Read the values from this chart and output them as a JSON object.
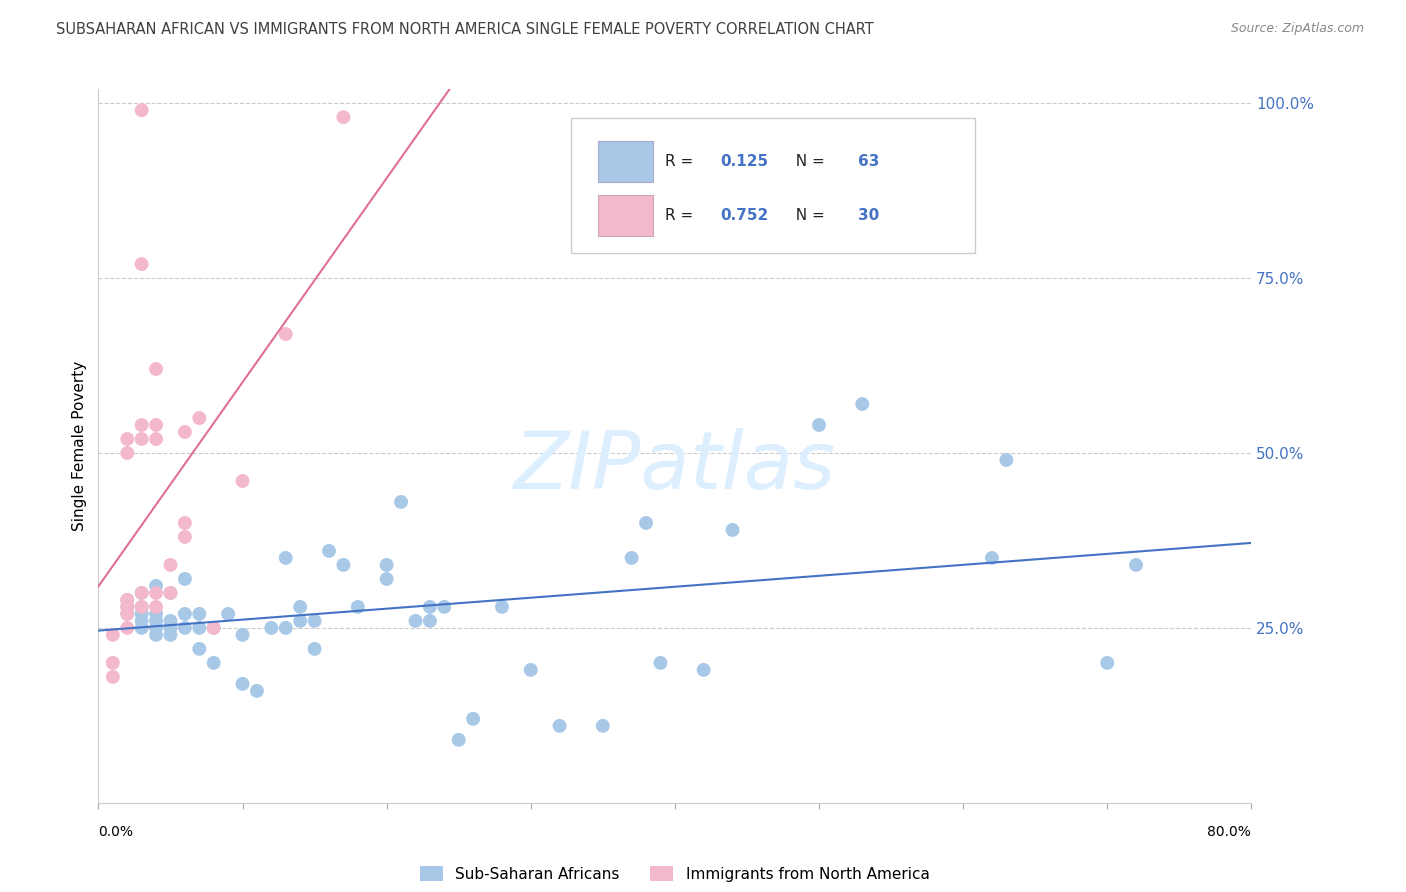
{
  "title": "SUBSAHARAN AFRICAN VS IMMIGRANTS FROM NORTH AMERICA SINGLE FEMALE POVERTY CORRELATION CHART",
  "source": "Source: ZipAtlas.com",
  "ylabel": "Single Female Poverty",
  "blue_label": "Sub-Saharan Africans",
  "pink_label": "Immigrants from North America",
  "blue_R": "0.125",
  "blue_N": "63",
  "pink_R": "0.752",
  "pink_N": "30",
  "blue_color": "#a8c8e8",
  "pink_color": "#f4b8cc",
  "blue_line_color": "#4472c4",
  "pink_line_color": "#e07090",
  "title_color": "#404040",
  "value_color": "#4472c4",
  "label_color": "#222222",
  "source_color": "#888888",
  "ytick_color": "#4472c4",
  "xlim": [
    0,
    0.8
  ],
  "ylim": [
    0,
    1.02
  ],
  "yticks": [
    0.25,
    0.5,
    0.75,
    1.0
  ],
  "ytick_labels": [
    "25.0%",
    "50.0%",
    "75.0%",
    "100.0%"
  ],
  "watermark": "ZIPatlas",
  "watermark_color": "#ddeeff",
  "blue_x": [
    0.02,
    0.02,
    0.02,
    0.03,
    0.03,
    0.03,
    0.03,
    0.03,
    0.04,
    0.04,
    0.04,
    0.04,
    0.04,
    0.05,
    0.05,
    0.05,
    0.05,
    0.06,
    0.06,
    0.06,
    0.07,
    0.07,
    0.07,
    0.08,
    0.08,
    0.09,
    0.1,
    0.1,
    0.11,
    0.12,
    0.13,
    0.13,
    0.14,
    0.14,
    0.15,
    0.15,
    0.16,
    0.17,
    0.18,
    0.2,
    0.2,
    0.21,
    0.22,
    0.23,
    0.23,
    0.24,
    0.25,
    0.26,
    0.28,
    0.3,
    0.32,
    0.35,
    0.37,
    0.38,
    0.39,
    0.42,
    0.44,
    0.5,
    0.53,
    0.62,
    0.63,
    0.7,
    0.72
  ],
  "blue_y": [
    0.27,
    0.28,
    0.29,
    0.25,
    0.26,
    0.27,
    0.28,
    0.3,
    0.24,
    0.25,
    0.26,
    0.27,
    0.31,
    0.24,
    0.25,
    0.26,
    0.3,
    0.25,
    0.27,
    0.32,
    0.22,
    0.25,
    0.27,
    0.2,
    0.25,
    0.27,
    0.17,
    0.24,
    0.16,
    0.25,
    0.25,
    0.35,
    0.26,
    0.28,
    0.22,
    0.26,
    0.36,
    0.34,
    0.28,
    0.32,
    0.34,
    0.43,
    0.26,
    0.26,
    0.28,
    0.28,
    0.09,
    0.12,
    0.28,
    0.19,
    0.11,
    0.11,
    0.35,
    0.4,
    0.2,
    0.19,
    0.39,
    0.54,
    0.57,
    0.35,
    0.49,
    0.2,
    0.34
  ],
  "pink_x": [
    0.01,
    0.01,
    0.01,
    0.02,
    0.02,
    0.02,
    0.02,
    0.02,
    0.02,
    0.03,
    0.03,
    0.03,
    0.03,
    0.03,
    0.03,
    0.04,
    0.04,
    0.04,
    0.04,
    0.04,
    0.05,
    0.05,
    0.06,
    0.06,
    0.06,
    0.07,
    0.08,
    0.1,
    0.13,
    0.17
  ],
  "pink_y": [
    0.18,
    0.2,
    0.24,
    0.25,
    0.27,
    0.28,
    0.29,
    0.5,
    0.52,
    0.28,
    0.3,
    0.52,
    0.54,
    0.77,
    0.99,
    0.28,
    0.3,
    0.52,
    0.54,
    0.62,
    0.3,
    0.34,
    0.38,
    0.4,
    0.53,
    0.55,
    0.25,
    0.46,
    0.67,
    0.98
  ]
}
